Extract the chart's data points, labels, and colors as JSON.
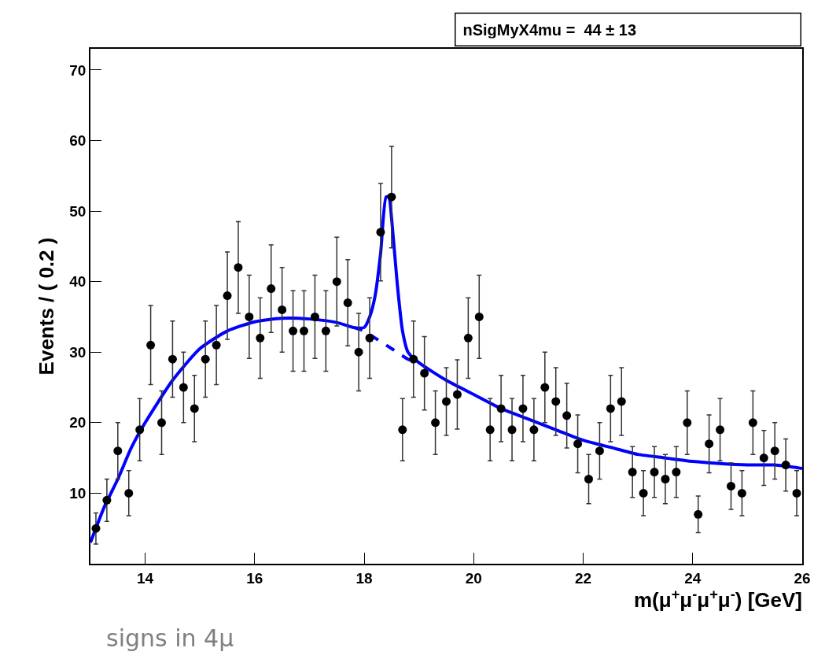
{
  "chart_data": {
    "type": "scatter",
    "xlabel": "m(μ$^{+}$μ$^{-}$μ$^{+}$μ$^{-}$) [GeV]",
    "ylabel": "Events / ( 0.2 )",
    "xlim": [
      13,
      26
    ],
    "ylim": [
      0,
      73
    ],
    "xticks": [
      14,
      16,
      18,
      20,
      22,
      24,
      26
    ],
    "yticks": [
      10,
      20,
      30,
      40,
      50,
      60,
      70
    ],
    "grid": false,
    "marker": "circle",
    "annotations": [
      "nSigMyX4mu =  44 ± 13",
      "signs in 4μ"
    ],
    "series": [
      {
        "color": "#000000",
        "x": [
          13.1,
          13.3,
          13.5,
          13.7,
          13.9,
          14.1,
          14.3,
          14.5,
          14.7,
          14.9,
          15.1,
          15.3,
          15.5,
          15.7,
          15.9,
          16.1,
          16.3,
          16.5,
          16.7,
          16.9,
          17.1,
          17.3,
          17.5,
          17.7,
          17.9,
          18.1,
          18.3,
          18.5,
          18.7,
          18.9,
          19.1,
          19.3,
          19.5,
          19.7,
          19.9,
          20.1,
          20.3,
          20.5,
          20.7,
          20.9,
          21.1,
          21.3,
          21.5,
          21.7,
          21.9,
          22.1,
          22.3,
          22.5,
          22.7,
          22.9,
          23.1,
          23.3,
          23.5,
          23.7,
          23.9,
          24.1,
          24.3,
          24.5,
          24.7,
          24.9,
          25.1,
          25.3,
          25.5,
          25.7,
          25.9
        ],
        "values": [
          5,
          9,
          16,
          10,
          19,
          31,
          20,
          29,
          25,
          22,
          29,
          31,
          38,
          42,
          35,
          32,
          39,
          36,
          33,
          33,
          35,
          33,
          40,
          37,
          30,
          32,
          47,
          52,
          19,
          29,
          27,
          20,
          23,
          24,
          32,
          35,
          19,
          22,
          19,
          22,
          19,
          25,
          23,
          21,
          17,
          12,
          16,
          22,
          23,
          13,
          10,
          13,
          12,
          13,
          20,
          7,
          17,
          19,
          11,
          10,
          20,
          15,
          16,
          14,
          10
        ],
        "errors": [
          2.2,
          3,
          4,
          3.2,
          4.4,
          5.6,
          4.5,
          5.4,
          5,
          4.7,
          5.4,
          5.6,
          6.2,
          6.5,
          5.9,
          5.7,
          6.2,
          6,
          5.7,
          5.7,
          5.9,
          5.7,
          6.3,
          6.1,
          5.5,
          5.7,
          6.9,
          7.2,
          4.4,
          5.4,
          5.2,
          4.5,
          4.8,
          4.9,
          5.7,
          5.9,
          4.4,
          4.7,
          4.4,
          4.7,
          4.4,
          5,
          4.8,
          4.6,
          4.1,
          3.5,
          4,
          4.7,
          4.8,
          3.6,
          3.2,
          3.6,
          3.5,
          3.6,
          4.5,
          2.6,
          4.1,
          4.4,
          3.3,
          3.2,
          4.5,
          3.9,
          4,
          3.7,
          3.2
        ]
      },
      {
        "type": "line",
        "color": "#0000ff",
        "line_style": "solid",
        "marker": "none",
        "x": [
          13,
          13.25,
          13.5,
          13.75,
          14,
          14.5,
          15,
          15.5,
          16,
          16.5,
          17,
          17.5,
          17.8,
          18,
          18.1,
          18.2,
          18.3,
          18.4,
          18.45,
          18.5,
          18.6,
          18.7,
          18.8,
          19,
          19.5,
          20,
          20.5,
          21,
          21.5,
          22,
          22.5,
          23,
          23.5,
          24,
          24.5,
          25,
          25.5,
          26
        ],
        "values": [
          3,
          8,
          12,
          16.5,
          20,
          26,
          30.5,
          33,
          34.3,
          34.8,
          34.7,
          34.2,
          33.5,
          33.5,
          35,
          38,
          44,
          52,
          52,
          49,
          40,
          33,
          30,
          28.5,
          26,
          24,
          22,
          20.5,
          19,
          17.5,
          16.5,
          15.5,
          15,
          14.5,
          14.2,
          14,
          14,
          13.5
        ]
      },
      {
        "type": "line",
        "color": "#0000ff",
        "line_style": "dashed",
        "marker": "none",
        "x": [
          17.8,
          18,
          18.2,
          18.4,
          18.6,
          18.8,
          19
        ],
        "values": [
          33.5,
          33,
          32,
          31,
          30,
          29,
          28.5
        ]
      }
    ]
  }
}
